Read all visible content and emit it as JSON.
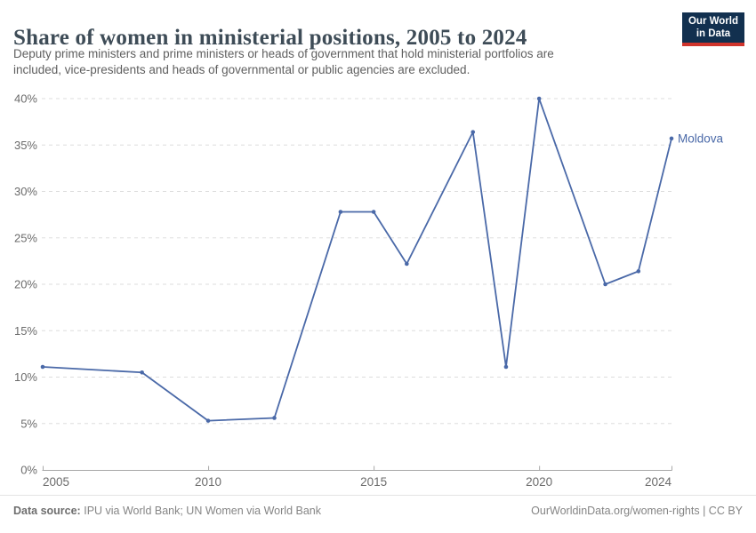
{
  "header": {
    "title": "Share of women in ministerial positions, 2005 to 2024",
    "subtitle_lines": [
      "Deputy prime ministers and prime ministers or heads of government that hold ministerial portfolios are",
      "included, vice-presidents and heads of governmental or public agencies are excluded."
    ]
  },
  "logo": {
    "line1": "Our World",
    "line2": "in Data",
    "bg_color": "#12304f",
    "accent_color": "#d0342c"
  },
  "chart_data": {
    "type": "line",
    "title": "Share of women in ministerial positions, 2005 to 2024",
    "series": [
      {
        "name": "Moldova",
        "color": "#4a69a8",
        "x": [
          2005,
          2008,
          2010,
          2012,
          2014,
          2015,
          2016,
          2018,
          2019,
          2020,
          2022,
          2023,
          2024
        ],
        "y": [
          11.1,
          10.5,
          5.3,
          5.6,
          27.8,
          27.8,
          22.2,
          36.4,
          11.1,
          40.0,
          20.0,
          21.4,
          35.7
        ]
      }
    ],
    "xlim": [
      2005,
      2024
    ],
    "ylim": [
      0,
      40
    ],
    "x_ticks": [
      2005,
      2010,
      2015,
      2020,
      2024
    ],
    "y_ticks": [
      0,
      5,
      10,
      15,
      20,
      25,
      30,
      35,
      40
    ],
    "y_tick_suffix": "%",
    "grid": "horizontal-dashed",
    "gridline_color": "#dddddd",
    "axis_color": "#a8a8a8",
    "tick_label_color": "#6b6b6b",
    "legend_position": "end-of-line-label"
  },
  "footer": {
    "source_label": "Data source:",
    "source_text": "IPU via World Bank; UN Women via World Bank",
    "link_text": "OurWorldinData.org/women-rights | CC BY"
  }
}
